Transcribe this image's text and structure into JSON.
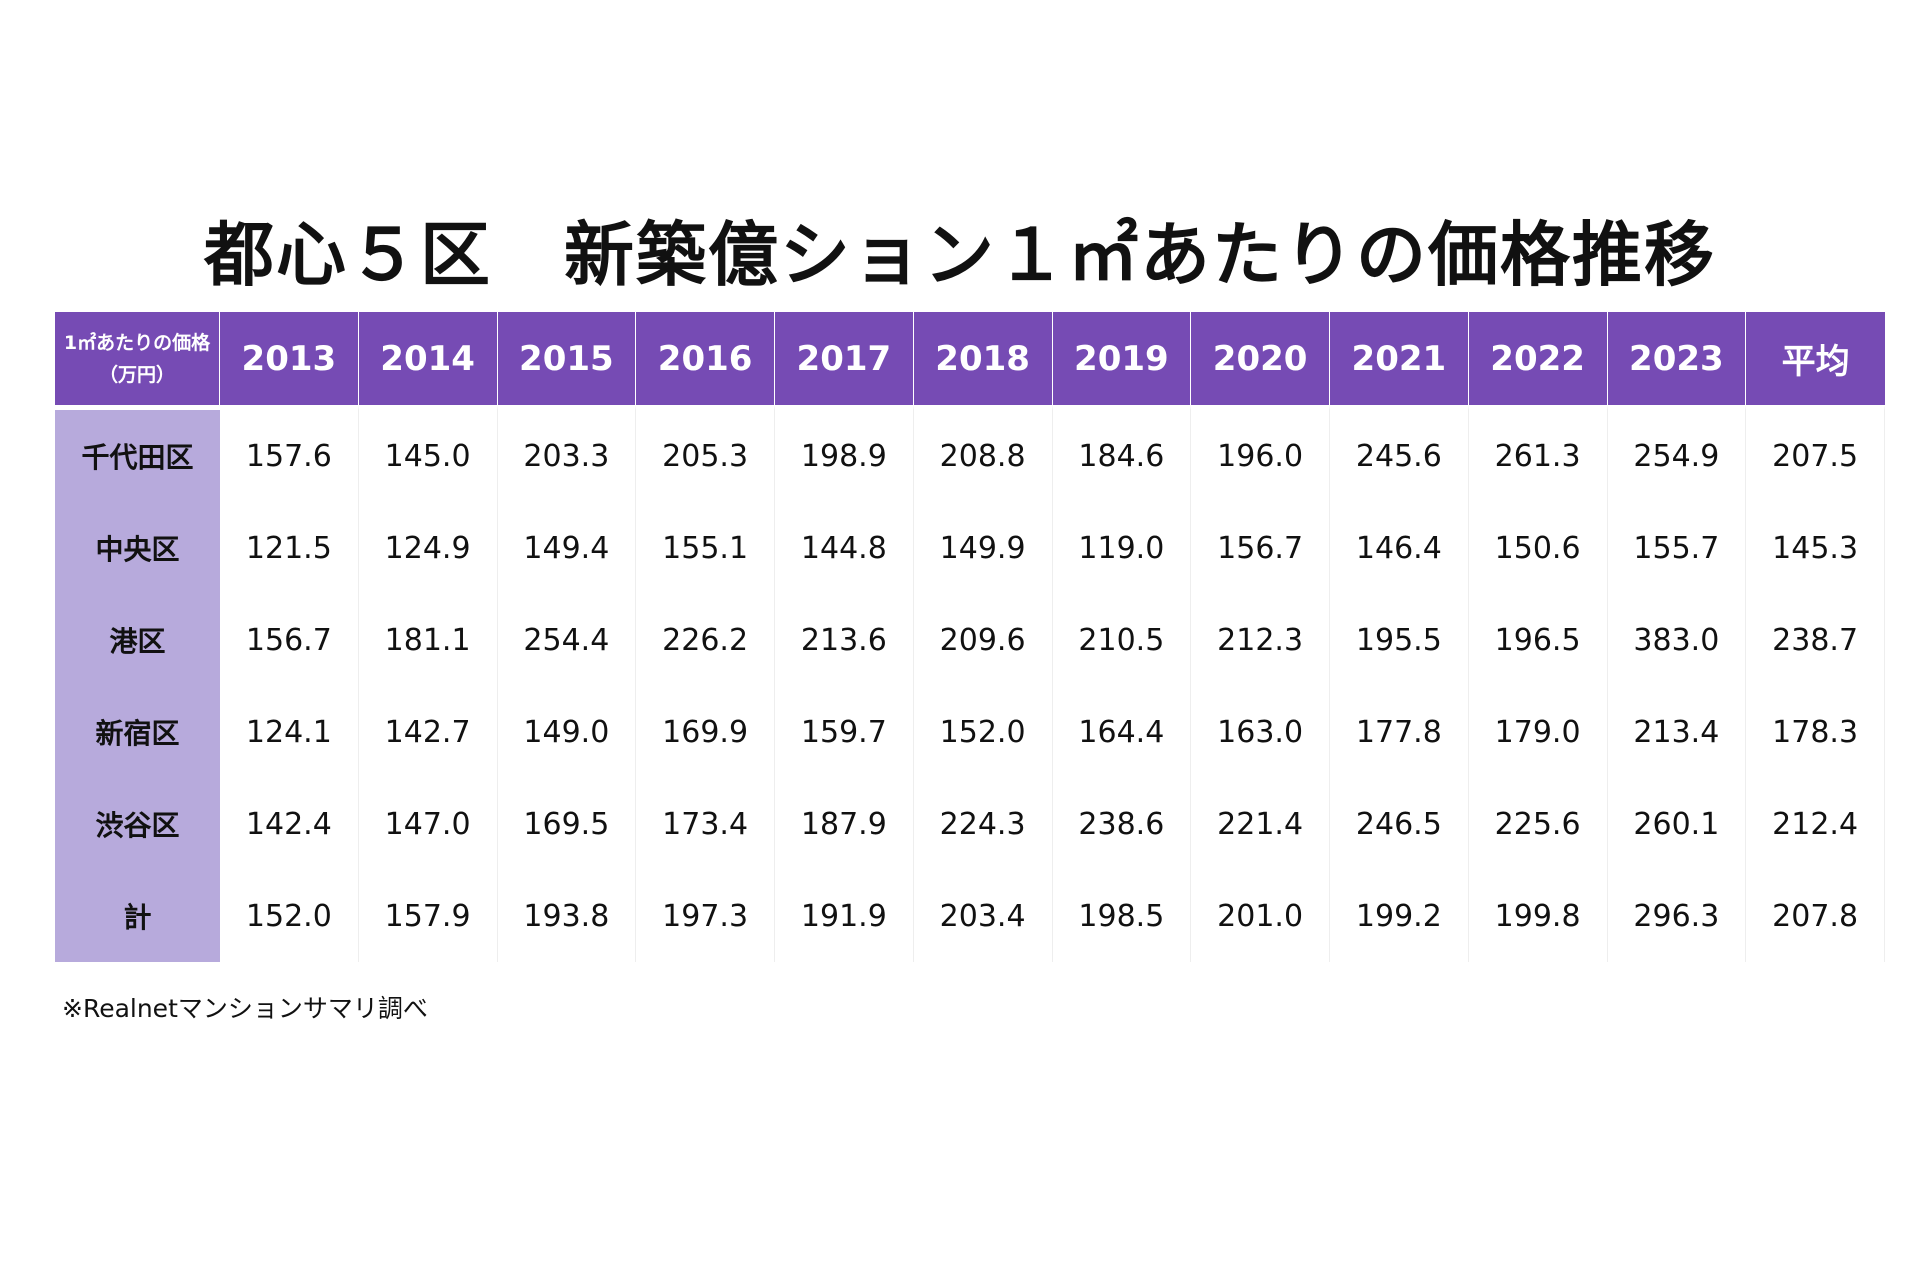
{
  "chart_data": {
    "type": "table",
    "title": "都心５区　新築億ション１㎡あたりの価格推移",
    "corner_label": [
      "1㎡あたりの価格",
      "（万円）"
    ],
    "columns": [
      "2013",
      "2014",
      "2015",
      "2016",
      "2017",
      "2018",
      "2019",
      "2020",
      "2021",
      "2022",
      "2023",
      "平均"
    ],
    "rows": [
      {
        "label": "千代田区",
        "values": [
          "157.6",
          "145.0",
          "203.3",
          "205.3",
          "198.9",
          "208.8",
          "184.6",
          "196.0",
          "245.6",
          "261.3",
          "254.9",
          "207.5"
        ]
      },
      {
        "label": "中央区",
        "values": [
          "121.5",
          "124.9",
          "149.4",
          "155.1",
          "144.8",
          "149.9",
          "119.0",
          "156.7",
          "146.4",
          "150.6",
          "155.7",
          "145.3"
        ]
      },
      {
        "label": "港区",
        "values": [
          "156.7",
          "181.1",
          "254.4",
          "226.2",
          "213.6",
          "209.6",
          "210.5",
          "212.3",
          "195.5",
          "196.5",
          "383.0",
          "238.7"
        ]
      },
      {
        "label": "新宿区",
        "values": [
          "124.1",
          "142.7",
          "149.0",
          "169.9",
          "159.7",
          "152.0",
          "164.4",
          "163.0",
          "177.8",
          "179.0",
          "213.4",
          "178.3"
        ]
      },
      {
        "label": "渋谷区",
        "values": [
          "142.4",
          "147.0",
          "169.5",
          "173.4",
          "187.9",
          "224.3",
          "238.6",
          "221.4",
          "246.5",
          "225.6",
          "260.1",
          "212.4"
        ]
      },
      {
        "label": "計",
        "values": [
          "152.0",
          "157.9",
          "193.8",
          "197.3",
          "191.9",
          "203.4",
          "198.5",
          "201.0",
          "199.2",
          "199.8",
          "296.3",
          "207.8"
        ]
      }
    ],
    "footnote": "※Realnetマンションサマリ調べ"
  },
  "colors": {
    "header_bg": "#764bb4",
    "header_text": "#ffffff",
    "row_label_bg": "#b7aadc",
    "text": "#111111"
  }
}
